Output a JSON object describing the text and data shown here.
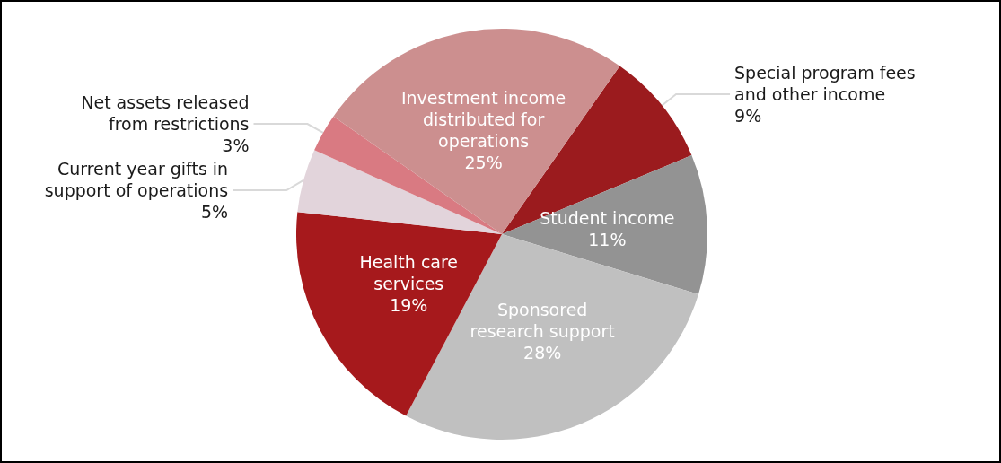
{
  "chart_data": {
    "type": "pie",
    "categories": [
      "Special program fees\nand other income",
      "Student income",
      "Sponsored\nresearch support",
      "Health care\nservices",
      "Current year gifts in\nsupport of operations",
      "Net assets released\nfrom restrictions",
      "Investment income\ndistributed for\noperations"
    ],
    "values": [
      9,
      11,
      28,
      19,
      5,
      3,
      25
    ],
    "value_labels": [
      "9%",
      "11%",
      "28%",
      "19%",
      "5%",
      "3%",
      "25%"
    ],
    "colors": [
      "#9b1b1e",
      "#939393",
      "#c0c0c0",
      "#a6191c",
      "#e2d4db",
      "#d97a82",
      "#cc8f8f"
    ],
    "legend": false
  }
}
